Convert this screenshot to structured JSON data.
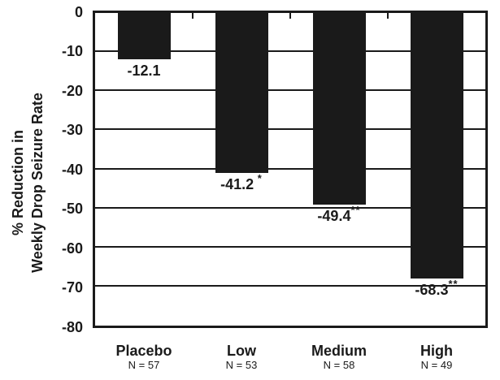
{
  "chart_data": {
    "type": "bar",
    "title": "",
    "y_axis_title_lines": [
      "% Reduction in",
      "Weekly Drop Seizure Rate"
    ],
    "categories": [
      "Placebo",
      "Low",
      "Medium",
      "High"
    ],
    "n_labels": [
      "N = 57",
      "N = 53",
      "N = 58",
      "N = 49"
    ],
    "values": [
      -12.1,
      -41.2,
      -49.4,
      -68.3
    ],
    "value_labels": [
      "-12.1",
      "-41.2",
      "-49.4",
      "-68.3"
    ],
    "significance_marks": [
      "",
      " *",
      "**",
      "**"
    ],
    "yticks": [
      "0",
      "-10",
      "-20",
      "-30",
      "-40",
      "-50",
      "-60",
      "-70",
      "-80"
    ],
    "ylim": [
      0,
      -80
    ],
    "grid": true,
    "legend_position": "none",
    "bar_color": "#1a1a1a",
    "axis_color": "#1a1a1a",
    "background_color": "#ffffff"
  }
}
